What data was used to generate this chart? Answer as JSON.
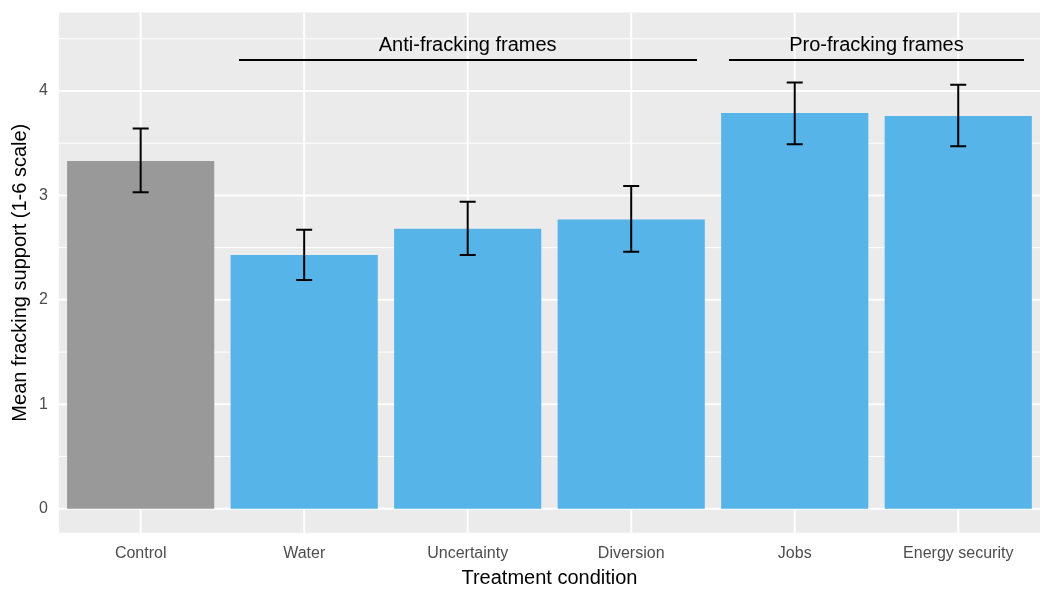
{
  "chart_data": {
    "type": "bar",
    "xlabel": "Treatment condition",
    "ylabel": "Mean fracking support (1-6 scale)",
    "categories": [
      "Control",
      "Water",
      "Uncertainty",
      "Diversion",
      "Jobs",
      "Energy security"
    ],
    "values": [
      3.33,
      2.43,
      2.68,
      2.77,
      3.79,
      3.76
    ],
    "colors": [
      "#999999",
      "#56b4e9",
      "#56b4e9",
      "#56b4e9",
      "#56b4e9",
      "#56b4e9"
    ],
    "errors": [
      [
        3.03,
        3.64
      ],
      [
        2.19,
        2.67
      ],
      [
        2.43,
        2.94
      ],
      [
        2.46,
        3.09
      ],
      [
        3.49,
        4.08
      ],
      [
        3.47,
        4.06
      ]
    ],
    "ylim": [
      -0.23,
      4.75
    ],
    "yticks": [
      0,
      1,
      2,
      3,
      4
    ],
    "grid": true,
    "legend": false,
    "annotations": [
      "Anti-fracking frames",
      "Pro-fracking frames"
    ]
  }
}
